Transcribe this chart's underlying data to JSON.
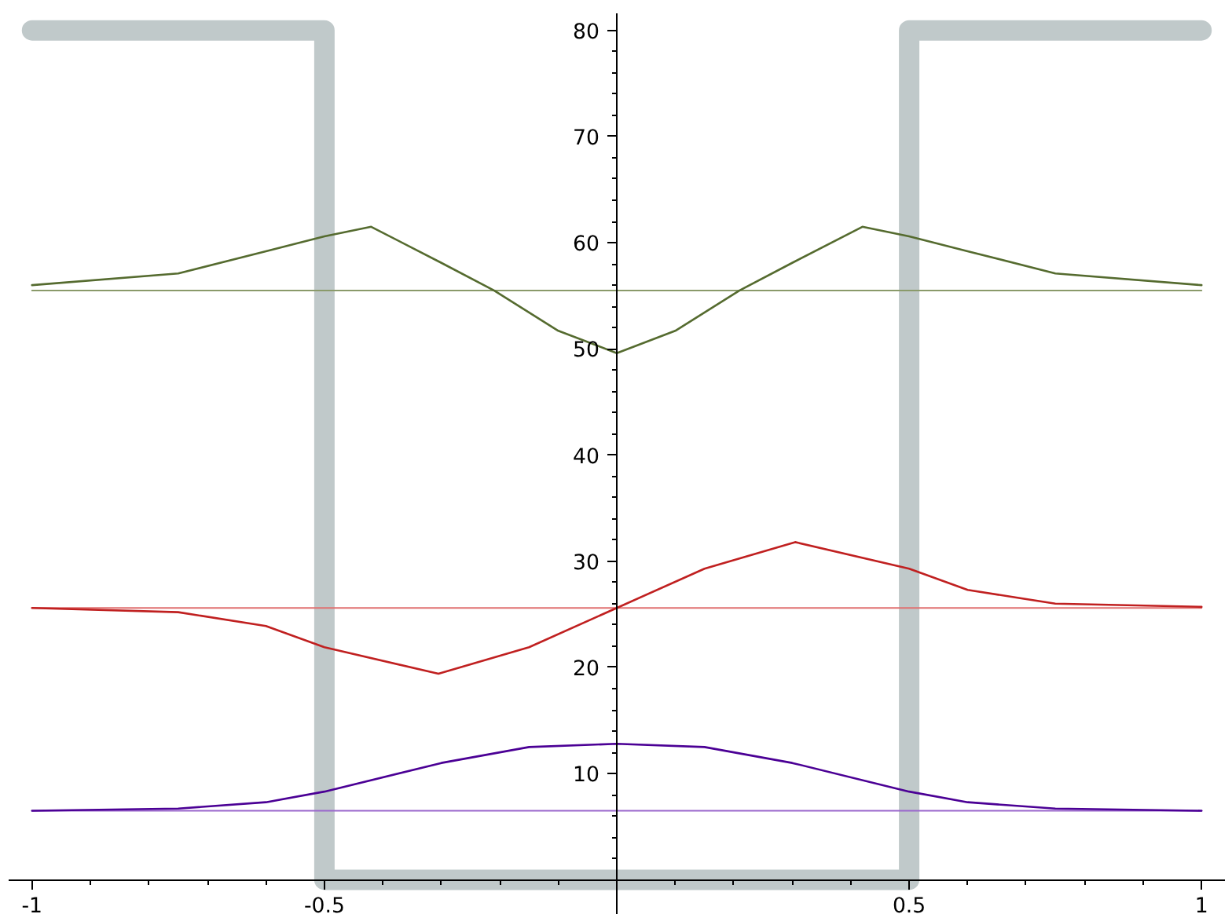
{
  "chart_data": {
    "type": "line",
    "xlim": [
      -1.04,
      1.04
    ],
    "ylim": [
      -3.3,
      81.6
    ],
    "xticks": [
      -1,
      -0.5,
      0.5,
      1
    ],
    "yticks": [
      10,
      20,
      30,
      40,
      50,
      60,
      70,
      80
    ],
    "grid": false,
    "marker": "none",
    "line_style": "solid",
    "series": [
      {
        "color": "#c0c9ca",
        "x": [
          -1,
          -0.5,
          -0.5,
          0.5,
          0.5,
          1
        ],
        "values": [
          80,
          80,
          0,
          0,
          80,
          80
        ]
      },
      {
        "color": "#9966cc",
        "x": [
          -1,
          1
        ],
        "values": [
          6.5,
          6.5
        ]
      },
      {
        "color": "#e07070",
        "x": [
          -1,
          1
        ],
        "values": [
          25.6,
          25.6
        ]
      },
      {
        "color": "#8a9a6a",
        "x": [
          -1,
          1
        ],
        "values": [
          55.5,
          55.5
        ]
      },
      {
        "color": "#4b0095",
        "x": [
          -1,
          -0.75,
          -0.6,
          -0.5,
          -0.3,
          -0.15,
          0,
          0.15,
          0.3,
          0.5,
          0.6,
          0.75,
          1
        ],
        "values": [
          6.5,
          6.7,
          7.3,
          8.3,
          11.0,
          12.5,
          12.8,
          12.5,
          11.0,
          8.3,
          7.3,
          6.7,
          6.5
        ]
      },
      {
        "color": "#c02020",
        "x": [
          -1,
          -0.75,
          -0.6,
          -0.5,
          -0.305,
          -0.15,
          0,
          0.15,
          0.305,
          0.5,
          0.6,
          0.75,
          1
        ],
        "values": [
          25.6,
          25.2,
          23.9,
          21.9,
          19.4,
          21.9,
          25.6,
          29.3,
          31.8,
          29.3,
          27.3,
          26.0,
          25.7
        ]
      },
      {
        "color": "#556b2f",
        "x": [
          -1,
          -0.75,
          -0.6,
          -0.5,
          -0.42,
          -0.3,
          -0.21,
          -0.1,
          0,
          0.1,
          0.21,
          0.3,
          0.42,
          0.5,
          0.6,
          0.75,
          1
        ],
        "values": [
          56.0,
          57.1,
          59.2,
          60.6,
          61.5,
          58.1,
          55.5,
          51.7,
          49.6,
          51.7,
          55.5,
          58.1,
          61.5,
          60.6,
          59.2,
          57.1,
          56.0
        ]
      }
    ]
  }
}
